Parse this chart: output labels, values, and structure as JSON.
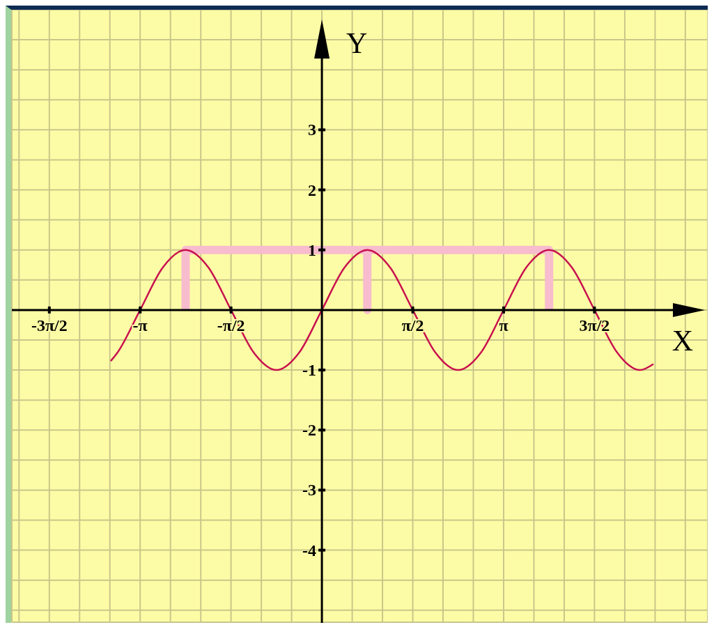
{
  "chart_data": {
    "type": "line",
    "xlabel": "X",
    "ylabel": "Y",
    "xlim": [
      -5.36,
      6.67
    ],
    "ylim": [
      -5.2,
      5
    ],
    "xticks": [
      {
        "value": -5.236,
        "label": null
      },
      {
        "value": -4.712,
        "label": "-3π/2"
      },
      {
        "value": -4.189,
        "label": null
      },
      {
        "value": -3.665,
        "label": null
      },
      {
        "value": -3.142,
        "label": "-π"
      },
      {
        "value": -2.618,
        "label": null
      },
      {
        "value": -2.094,
        "label": null
      },
      {
        "value": -1.571,
        "label": "-π/2"
      },
      {
        "value": -1.047,
        "label": null
      },
      {
        "value": -0.524,
        "label": null
      },
      {
        "value": 0,
        "label": null
      },
      {
        "value": 0.524,
        "label": null
      },
      {
        "value": 1.047,
        "label": null
      },
      {
        "value": 1.571,
        "label": "π/2"
      },
      {
        "value": 2.094,
        "label": null
      },
      {
        "value": 2.618,
        "label": null
      },
      {
        "value": 3.142,
        "label": "π"
      },
      {
        "value": 3.665,
        "label": null
      },
      {
        "value": 4.189,
        "label": null
      },
      {
        "value": 4.712,
        "label": "3π/2"
      },
      {
        "value": 5.236,
        "label": null
      },
      {
        "value": 5.76,
        "label": null
      },
      {
        "value": 6.283,
        "label": null
      }
    ],
    "yticks": [
      {
        "value": -5,
        "label": null
      },
      {
        "value": -4.5,
        "label": null
      },
      -4,
      {
        "value": -3.5,
        "label": null
      },
      -3,
      {
        "value": -2.5,
        "label": null
      },
      -2,
      {
        "value": -1.5,
        "label": null
      },
      -1,
      {
        "value": -0.5,
        "label": null
      },
      {
        "value": 0,
        "label": null
      },
      {
        "value": 0.5,
        "label": null
      },
      1,
      {
        "value": 1.5,
        "label": null
      },
      2,
      {
        "value": 2.5,
        "label": null
      },
      3,
      {
        "value": 3.5,
        "label": null
      },
      {
        "value": 4,
        "label": null
      },
      {
        "value": 4.5,
        "label": null
      }
    ],
    "grid": true,
    "series": [
      {
        "color": "#f7bccd",
        "x": [
          -2.356,
          -2.356,
          0.785,
          0.785,
          0.785,
          3.927,
          3.927
        ],
        "values": [
          0,
          1,
          1,
          0,
          1,
          1,
          0
        ]
      },
      {
        "color": "#c8104e",
        "x": [
          -3.65,
          -3.534,
          -3.142,
          -2.749,
          -2.356,
          -1.963,
          -1.571,
          -1.178,
          -0.785,
          -0.393,
          0,
          0.393,
          0.785,
          1.178,
          1.571,
          1.963,
          2.356,
          2.749,
          3.142,
          3.534,
          3.927,
          4.32,
          4.712,
          5.105,
          5.498,
          5.73
        ],
        "values": [
          -0.85,
          -0.71,
          0,
          0.71,
          1,
          0.71,
          0,
          -0.71,
          -1,
          -0.71,
          0,
          0.71,
          1,
          0.71,
          0,
          -0.71,
          -1,
          -0.71,
          0,
          0.71,
          1,
          0.71,
          0,
          -0.71,
          -1,
          -0.9
        ]
      }
    ]
  }
}
